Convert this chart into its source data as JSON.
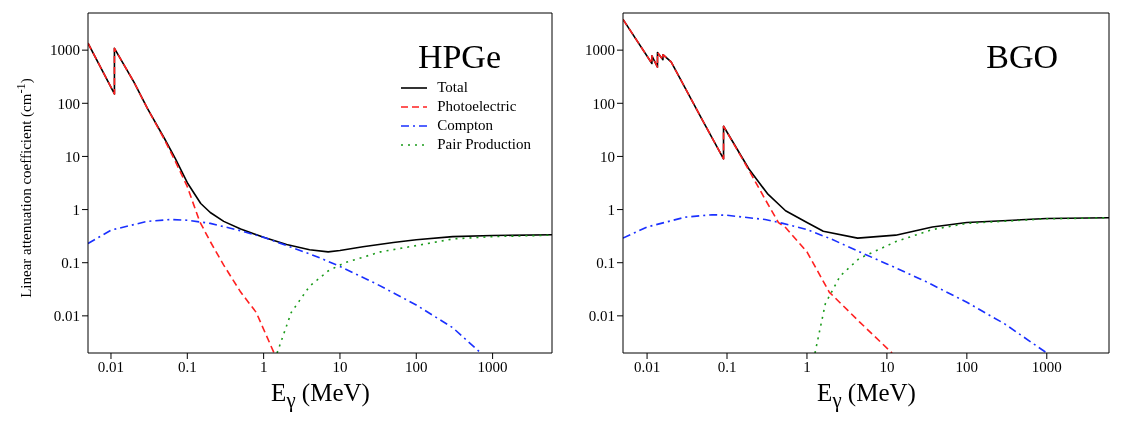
{
  "chart_data": [
    {
      "type": "line",
      "title": "HPGe",
      "xlabel": "E$_{γ}$ (MeV)",
      "ylabel": "Linear attenuation coefficient (cm$^{-1}$)",
      "log": "xy",
      "xlim": [
        0.005,
        6000
      ],
      "ylim": [
        0.002,
        5000
      ],
      "xticks": [
        0.01,
        0.1,
        1,
        10,
        100,
        1000
      ],
      "yticks": [
        0.01,
        0.1,
        1,
        10,
        100,
        1000
      ],
      "legend": "top right",
      "marker": "none",
      "series": [
        {
          "name": "Total",
          "color": "#000000",
          "line_style": "solid",
          "x": [
            0.005,
            0.0111,
            0.0111,
            0.02,
            0.03,
            0.05,
            0.07,
            0.1,
            0.15,
            0.2,
            0.3,
            0.5,
            1,
            2,
            4,
            7,
            10,
            20,
            50,
            100,
            300,
            1000,
            6000
          ],
          "values": [
            1350,
            150,
            1080,
            250,
            80,
            22,
            9,
            3.2,
            1.3,
            0.88,
            0.6,
            0.43,
            0.3,
            0.22,
            0.175,
            0.16,
            0.17,
            0.2,
            0.24,
            0.27,
            0.31,
            0.325,
            0.335
          ]
        },
        {
          "name": "Photoelectric",
          "color": "#ff2020",
          "line_style": "dashed",
          "x": [
            0.005,
            0.0111,
            0.0111,
            0.02,
            0.03,
            0.05,
            0.07,
            0.1,
            0.145,
            0.2,
            0.3,
            0.5,
            0.8,
            1.37
          ],
          "values": [
            1350,
            150,
            1080,
            250,
            80,
            21,
            8,
            2.7,
            0.6,
            0.25,
            0.09,
            0.028,
            0.0116,
            0.002
          ]
        },
        {
          "name": "Compton",
          "color": "#1a30ff",
          "line_style": "dashdot",
          "x": [
            0.005,
            0.01,
            0.03,
            0.06,
            0.1,
            0.2,
            0.5,
            1,
            2,
            5,
            10,
            30,
            100,
            300,
            700
          ],
          "values": [
            0.23,
            0.41,
            0.6,
            0.65,
            0.63,
            0.55,
            0.4,
            0.3,
            0.21,
            0.13,
            0.085,
            0.04,
            0.016,
            0.006,
            0.002
          ]
        },
        {
          "name": "Pair Production",
          "color": "#1a9a1a",
          "line_style": "dotted",
          "x": [
            1.5,
            2.3,
            4,
            7,
            11.6,
            34,
            100,
            300,
            1000,
            6000
          ],
          "values": [
            0.002,
            0.0116,
            0.036,
            0.07,
            0.1,
            0.16,
            0.21,
            0.28,
            0.31,
            0.33
          ]
        }
      ]
    },
    {
      "type": "line",
      "title": "BGO",
      "xlabel": "E$_{γ}$ (MeV)",
      "log": "xy",
      "xlim": [
        0.005,
        6000
      ],
      "ylim": [
        0.002,
        5000
      ],
      "xticks": [
        0.01,
        0.1,
        1,
        10,
        100,
        1000
      ],
      "yticks": [
        0.01,
        0.1,
        1,
        10,
        100,
        1000
      ],
      "marker": "none",
      "series": [
        {
          "color": "#000000",
          "line_style": "solid",
          "x": [
            0.005,
            0.0115,
            0.0115,
            0.0135,
            0.0135,
            0.0158,
            0.0158,
            0.02,
            0.0483,
            0.0905,
            0.0905,
            0.188,
            0.32,
            0.54,
            1,
            1.6,
            4.3,
            12.9,
            37,
            100,
            1000,
            6000
          ],
          "values": [
            3800,
            560,
            780,
            480,
            900,
            660,
            820,
            600,
            51,
            9,
            37,
            5.8,
            2,
            0.95,
            0.57,
            0.39,
            0.29,
            0.33,
            0.47,
            0.57,
            0.68,
            0.7
          ]
        },
        {
          "color": "#ff2020",
          "line_style": "dashed",
          "x": [
            0.005,
            0.0115,
            0.0115,
            0.0135,
            0.0135,
            0.0158,
            0.0158,
            0.02,
            0.0483,
            0.0905,
            0.0905,
            0.188,
            0.3,
            0.44,
            0.54,
            1,
            1.9,
            4.5,
            11.6
          ],
          "values": [
            3800,
            560,
            780,
            480,
            900,
            660,
            820,
            600,
            51,
            9,
            37,
            5.5,
            1.56,
            0.57,
            0.46,
            0.16,
            0.028,
            0.0078,
            0.002
          ]
        },
        {
          "color": "#1a30ff",
          "line_style": "dashdot",
          "x": [
            0.005,
            0.01,
            0.03,
            0.065,
            0.1,
            0.3,
            0.5,
            1,
            2,
            5,
            10,
            30,
            100,
            300,
            1000
          ],
          "values": [
            0.29,
            0.47,
            0.72,
            0.8,
            0.78,
            0.65,
            0.55,
            0.42,
            0.28,
            0.15,
            0.095,
            0.045,
            0.018,
            0.007,
            0.002
          ]
        },
        {
          "color": "#1a9a1a",
          "line_style": "dotted",
          "x": [
            1.26,
            1.7,
            2.6,
            4.5,
            13,
            37,
            100,
            1000,
            6000
          ],
          "values": [
            0.002,
            0.017,
            0.056,
            0.12,
            0.25,
            0.42,
            0.55,
            0.67,
            0.7
          ]
        }
      ]
    }
  ]
}
